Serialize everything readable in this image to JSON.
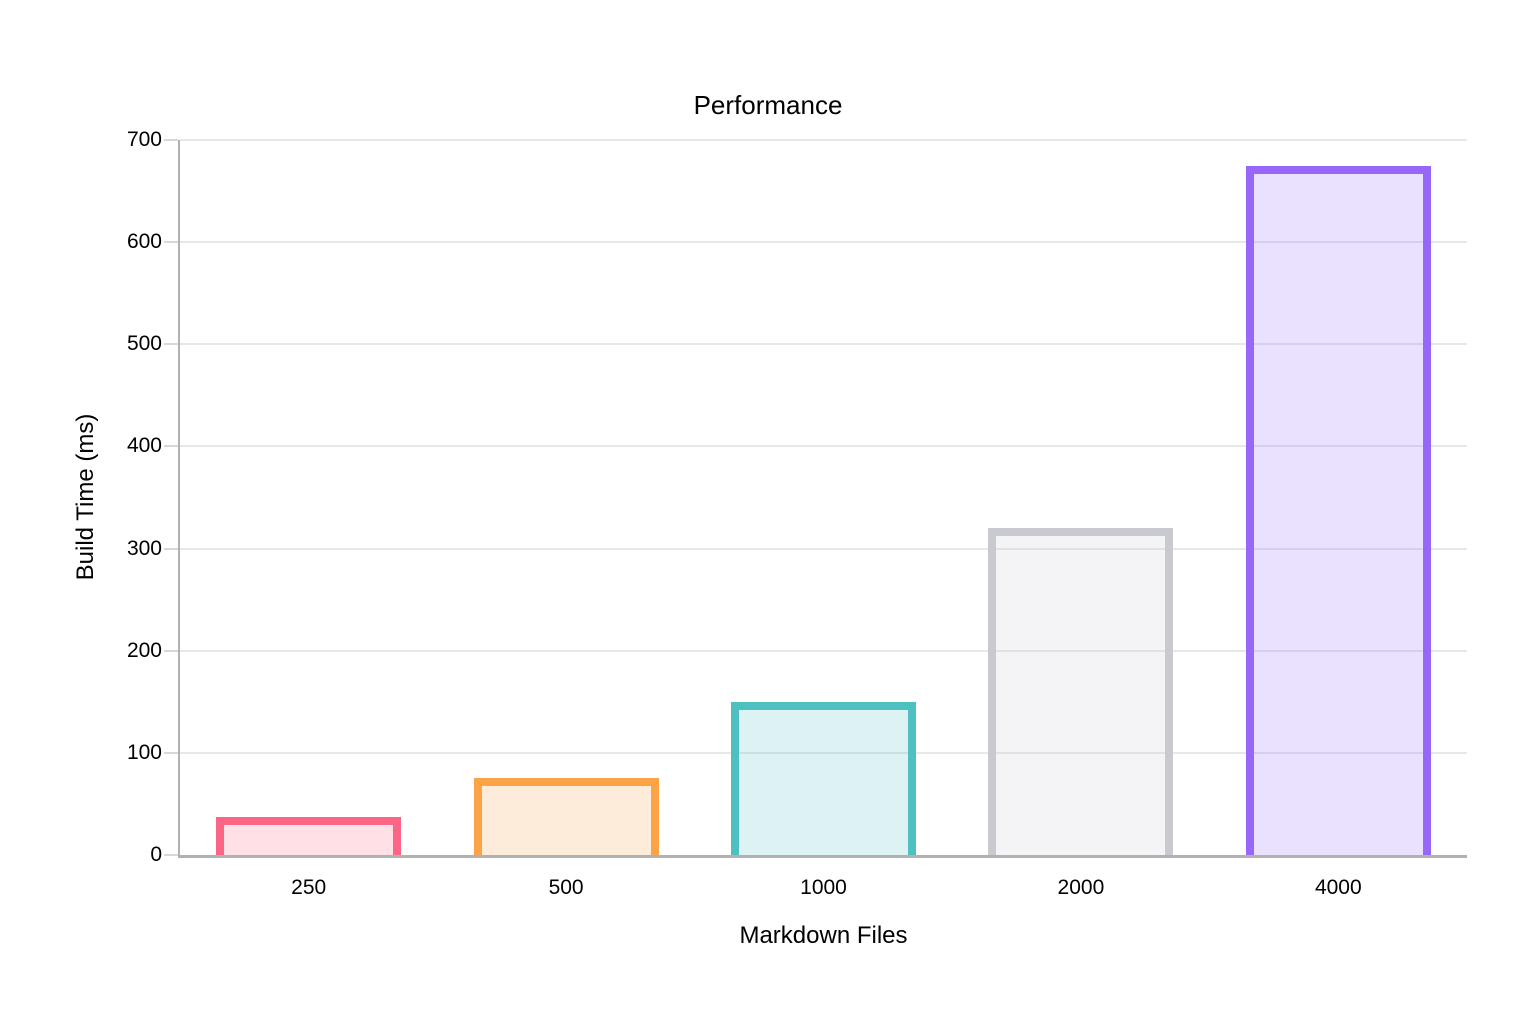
{
  "chart_data": {
    "type": "bar",
    "title": "Performance",
    "xlabel": "Markdown Files",
    "ylabel": "Build Time (ms)",
    "categories": [
      "250",
      "500",
      "1000",
      "2000",
      "4000"
    ],
    "values": [
      37,
      75,
      150,
      320,
      675
    ],
    "ylim": [
      0,
      700
    ],
    "yticks": [
      0,
      100,
      200,
      300,
      400,
      500,
      600,
      700
    ],
    "grid": true,
    "legend_position": "none",
    "bar_border_colors": [
      "#FD6586",
      "#FCA247",
      "#4FC0C1",
      "#C8CAD0",
      "#9767FA"
    ],
    "bar_fill_opacity": 0.2,
    "axis_color": "#B1B1B1",
    "grid_color": "#E8E8E8",
    "text_color": "#000000",
    "background_color": "#FFFFFF"
  }
}
